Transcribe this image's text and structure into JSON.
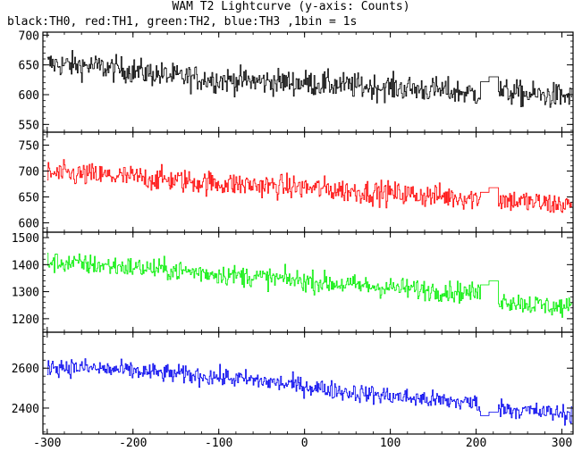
{
  "chart_data": {
    "type": "line",
    "title": "WAM T2 Lightcurve (y-axis: Counts)",
    "subtitle": "black:TH0, red:TH1, green:TH2, blue:TH3 ,1bin = 1s",
    "xlabel": "",
    "xlim": [
      -305,
      313
    ],
    "x_ticks": [
      -300,
      -200,
      -100,
      0,
      100,
      200,
      300
    ],
    "grid": false,
    "gap": {
      "x_start": 205,
      "x_end": 225
    },
    "series": [
      {
        "name": "TH0",
        "color": "#000000",
        "ylim": [
          537,
          705
        ],
        "y_ticks": [
          550,
          600,
          650,
          700
        ],
        "x": [
          -300,
          -250,
          -200,
          -150,
          -100,
          -50,
          0,
          50,
          100,
          150,
          200,
          230,
          260,
          290,
          310
        ],
        "y": [
          652,
          648,
          640,
          630,
          625,
          622,
          620,
          615,
          612,
          608,
          602,
          605,
          600,
          598,
          597
        ],
        "noise": 28,
        "gap_level": 630
      },
      {
        "name": "TH1",
        "color": "#ff0000",
        "ylim": [
          582,
          775
        ],
        "y_ticks": [
          600,
          650,
          700,
          750
        ],
        "x": [
          -300,
          -250,
          -200,
          -150,
          -100,
          -50,
          0,
          50,
          100,
          150,
          200,
          230,
          260,
          290,
          310
        ],
        "y": [
          695,
          692,
          688,
          682,
          676,
          672,
          668,
          662,
          657,
          652,
          648,
          645,
          640,
          636,
          634
        ],
        "noise": 30,
        "gap_level": 668
      },
      {
        "name": "TH2",
        "color": "#00ee00",
        "ylim": [
          1150,
          1520
        ],
        "y_ticks": [
          1200,
          1300,
          1400,
          1500
        ],
        "x": [
          -300,
          -250,
          -200,
          -150,
          -100,
          -50,
          0,
          50,
          100,
          150,
          200,
          230,
          260,
          290,
          310
        ],
        "y": [
          1410,
          1400,
          1390,
          1378,
          1365,
          1352,
          1340,
          1325,
          1315,
          1305,
          1295,
          1270,
          1255,
          1245,
          1240
        ],
        "noise": 50,
        "gap_level": 1340
      },
      {
        "name": "TH3",
        "color": "#0000ee",
        "ylim": [
          2270,
          2780
        ],
        "y_ticks": [
          2400,
          2600
        ],
        "x": [
          -300,
          -250,
          -200,
          -150,
          -100,
          -50,
          0,
          50,
          100,
          150,
          200,
          230,
          260,
          290,
          310
        ],
        "y": [
          2610,
          2600,
          2585,
          2570,
          2555,
          2535,
          2510,
          2480,
          2460,
          2440,
          2425,
          2400,
          2385,
          2375,
          2370
        ],
        "noise": 60,
        "gap_level": 2380
      }
    ]
  }
}
